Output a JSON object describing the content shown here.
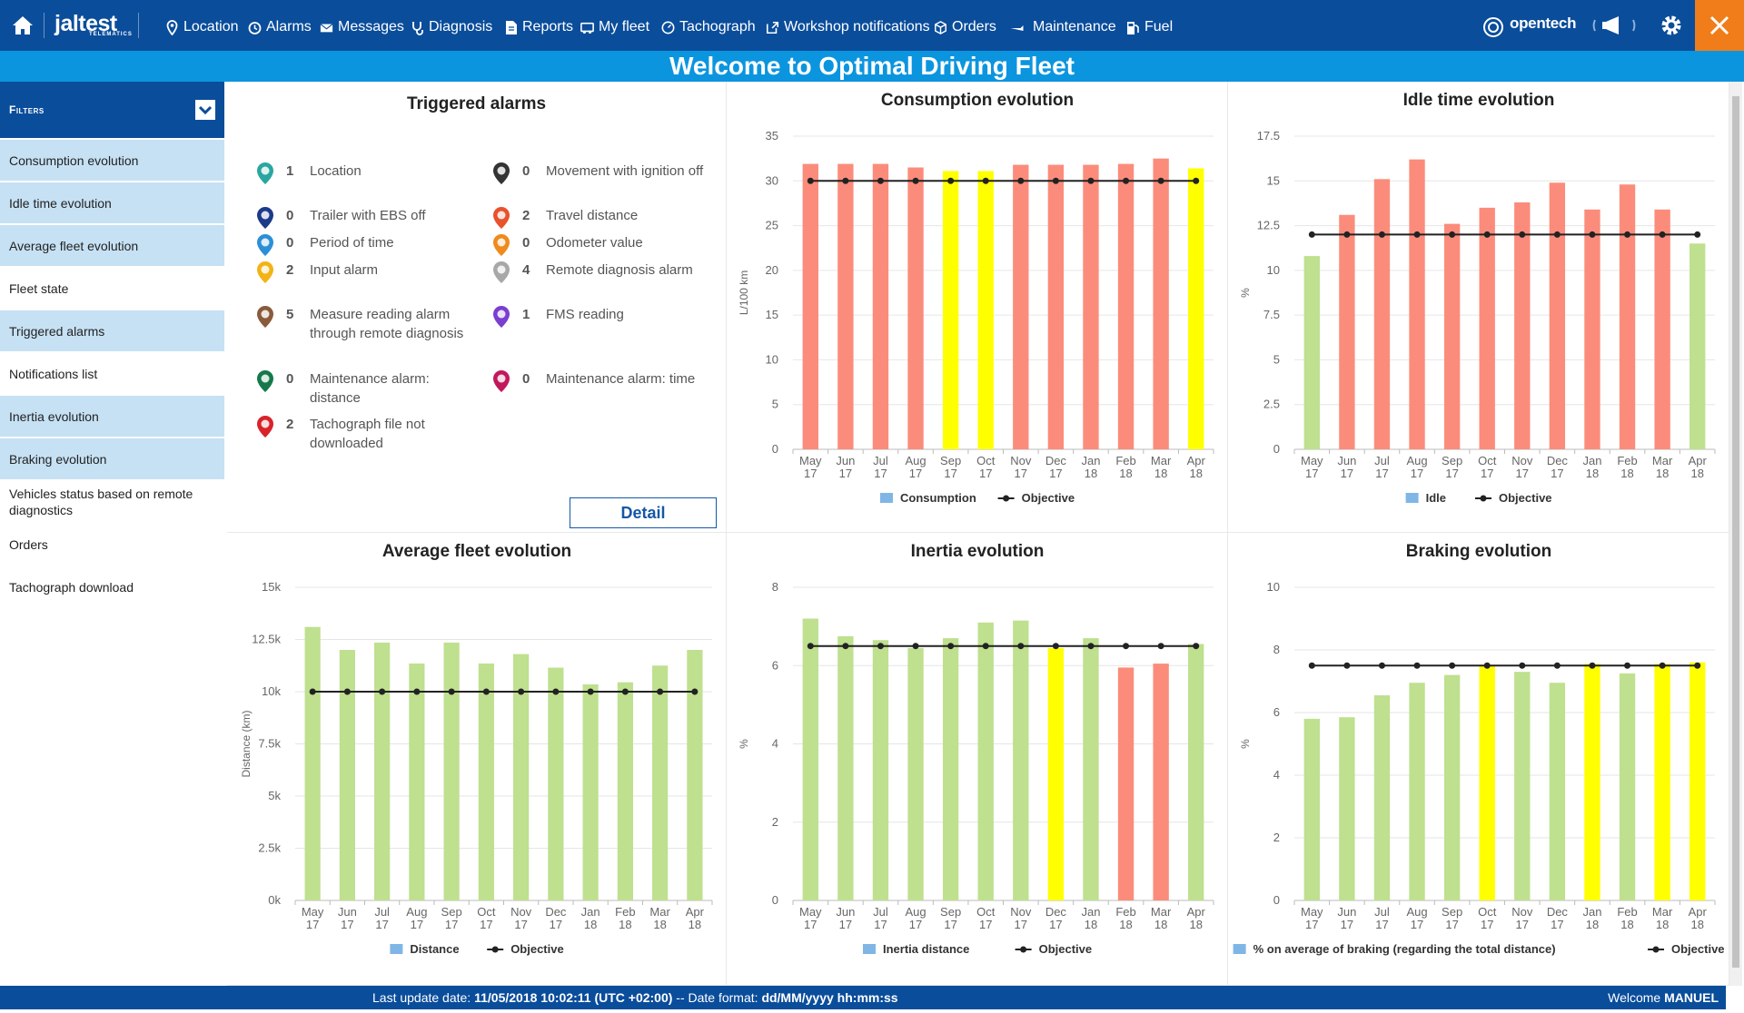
{
  "topbar": {
    "brand": "jaltest",
    "brand_sub": "TELEMATICS",
    "nav": [
      "Location",
      "Alarms",
      "Messages",
      "Diagnosis",
      "Reports",
      "My fleet",
      "Tachograph",
      "Workshop notifications",
      "Orders",
      "Maintenance",
      "Fuel"
    ],
    "right_brand": "opentech"
  },
  "welcome": "Welcome to Optimal Driving Fleet",
  "sidebar": {
    "header": "Filters",
    "items": [
      {
        "label": "Consumption evolution",
        "active": true
      },
      {
        "label": "Idle time evolution",
        "active": true
      },
      {
        "label": "Average fleet evolution",
        "active": true
      },
      {
        "label": "Fleet state",
        "active": false
      },
      {
        "label": "Triggered alarms",
        "active": true
      },
      {
        "label": "Notifications list",
        "active": false
      },
      {
        "label": "Inertia evolution",
        "active": true
      },
      {
        "label": "Braking evolution",
        "active": true
      },
      {
        "label": "Vehicles status based on remote diagnostics",
        "active": false
      },
      {
        "label": "Orders",
        "active": false
      },
      {
        "label": "Tachograph download",
        "active": false
      }
    ]
  },
  "alarms": {
    "title": "Triggered alarms",
    "detail_label": "Detail",
    "left": [
      {
        "count": "1",
        "label": "Location",
        "color": "#2aa6a0"
      },
      {
        "count": "0",
        "label": "Trailer with EBS off",
        "color": "#1c3a8a"
      },
      {
        "count": "0",
        "label": "Period of time",
        "color": "#2c8fd6"
      },
      {
        "count": "2",
        "label": "Input alarm",
        "color": "#f3b315"
      },
      {
        "count": "5",
        "label": "Measure reading alarm through remote diagnosis",
        "color": "#8a5a3c"
      },
      {
        "count": "0",
        "label": "Maintenance alarm: distance",
        "color": "#15784a"
      },
      {
        "count": "2",
        "label": "Tachograph file not downloaded",
        "color": "#d8232a"
      }
    ],
    "right": [
      {
        "count": "0",
        "label": "Movement with ignition off",
        "color": "#333333"
      },
      {
        "count": "2",
        "label": "Travel distance",
        "color": "#e8522c"
      },
      {
        "count": "0",
        "label": "Odometer value",
        "color": "#f08a1c"
      },
      {
        "count": "4",
        "label": "Remote diagnosis alarm",
        "color": "#a8a8a8"
      },
      {
        "count": "1",
        "label": "FMS reading",
        "color": "#7a3fd0"
      },
      {
        "count": "0",
        "label": "Maintenance alarm: time",
        "color": "#c2185b"
      }
    ]
  },
  "status": {
    "prefix": "Last update date: ",
    "date": "11/05/2018 10:02:11 (UTC +02:00)",
    "mid": " -- Date format: ",
    "format": "dd/MM/yyyy hh:mm:ss",
    "welcome_prefix": "Welcome ",
    "user": "MANUEL"
  },
  "colors": {
    "red": "#fb8c7b",
    "yellow": "#ffff00",
    "green": "#bfe08f",
    "legend": "#7fb6e6"
  },
  "chart_data": [
    {
      "id": "consumption",
      "type": "bar",
      "title": "Consumption evolution",
      "ylabel": "L/100 km",
      "ylim": [
        0,
        35
      ],
      "yticks": [
        0,
        5,
        10,
        15,
        20,
        25,
        30,
        35
      ],
      "categories": [
        "May 17",
        "Jun 17",
        "Jul 17",
        "Aug 17",
        "Sep 17",
        "Oct 17",
        "Nov 17",
        "Dec 17",
        "Jan 18",
        "Feb 18",
        "Mar 18",
        "Apr 18"
      ],
      "series": [
        {
          "name": "Consumption",
          "values": [
            31.9,
            31.9,
            31.9,
            31.5,
            31.1,
            31.1,
            31.8,
            31.8,
            31.8,
            31.9,
            32.5,
            31.4
          ],
          "bar_colors": [
            "red",
            "red",
            "red",
            "red",
            "yellow",
            "yellow",
            "red",
            "red",
            "red",
            "red",
            "red",
            "yellow"
          ]
        },
        {
          "name": "Objective",
          "values": [
            30,
            30,
            30,
            30,
            30,
            30,
            30,
            30,
            30,
            30,
            30,
            30
          ]
        }
      ]
    },
    {
      "id": "idle",
      "type": "bar",
      "title": "Idle time evolution",
      "ylabel": "%",
      "ylim": [
        0,
        17.5
      ],
      "yticks": [
        0,
        2.5,
        5,
        7.5,
        10,
        12.5,
        15,
        17.5
      ],
      "categories": [
        "May 17",
        "Jun 17",
        "Jul 17",
        "Aug 17",
        "Sep 17",
        "Oct 17",
        "Nov 17",
        "Dec 17",
        "Jan 18",
        "Feb 18",
        "Mar 18",
        "Apr 18"
      ],
      "series": [
        {
          "name": "Idle",
          "values": [
            10.8,
            13.1,
            15.1,
            16.2,
            12.6,
            13.5,
            13.8,
            14.9,
            13.4,
            14.8,
            13.4,
            11.5
          ],
          "bar_colors": [
            "green",
            "red",
            "red",
            "red",
            "red",
            "red",
            "red",
            "red",
            "red",
            "red",
            "red",
            "green"
          ]
        },
        {
          "name": "Objective",
          "values": [
            12,
            12,
            12,
            12,
            12,
            12,
            12,
            12,
            12,
            12,
            12,
            12
          ]
        }
      ]
    },
    {
      "id": "fleet",
      "type": "bar",
      "title": "Average fleet evolution",
      "ylabel": "Distance (km)",
      "ylim": [
        0,
        15000
      ],
      "yticks": [
        0,
        2500,
        5000,
        7500,
        10000,
        12500,
        15000
      ],
      "ytick_labels": [
        "0k",
        "2.5k",
        "5k",
        "7.5k",
        "10k",
        "12.5k",
        "15k"
      ],
      "categories": [
        "May 17",
        "Jun 17",
        "Jul 17",
        "Aug 17",
        "Sep 17",
        "Oct 17",
        "Nov 17",
        "Dec 17",
        "Jan 18",
        "Feb 18",
        "Mar 18",
        "Apr 18"
      ],
      "series": [
        {
          "name": "Distance",
          "values": [
            13100,
            12000,
            12350,
            11350,
            12350,
            11350,
            11800,
            11150,
            10350,
            10450,
            11250,
            12000
          ],
          "bar_colors": [
            "green",
            "green",
            "green",
            "green",
            "green",
            "green",
            "green",
            "green",
            "green",
            "green",
            "green",
            "green"
          ]
        },
        {
          "name": "Objective",
          "values": [
            10000,
            10000,
            10000,
            10000,
            10000,
            10000,
            10000,
            10000,
            10000,
            10000,
            10000,
            10000
          ]
        }
      ]
    },
    {
      "id": "inertia",
      "type": "bar",
      "title": "Inertia evolution",
      "ylabel": "%",
      "ylim": [
        0,
        8
      ],
      "yticks": [
        0,
        2,
        4,
        6,
        8
      ],
      "categories": [
        "May 17",
        "Jun 17",
        "Jul 17",
        "Aug 17",
        "Sep 17",
        "Oct 17",
        "Nov 17",
        "Dec 17",
        "Jan 18",
        "Feb 18",
        "Mar 18",
        "Apr 18"
      ],
      "series": [
        {
          "name": "Inertia distance",
          "values": [
            7.2,
            6.75,
            6.65,
            6.45,
            6.7,
            7.1,
            7.15,
            6.45,
            6.7,
            5.95,
            6.05,
            6.55
          ],
          "bar_colors": [
            "green",
            "green",
            "green",
            "green",
            "green",
            "green",
            "green",
            "yellow",
            "green",
            "red",
            "red",
            "green"
          ]
        },
        {
          "name": "Objective",
          "values": [
            6.5,
            6.5,
            6.5,
            6.5,
            6.5,
            6.5,
            6.5,
            6.5,
            6.5,
            6.5,
            6.5,
            6.5
          ]
        }
      ]
    },
    {
      "id": "braking",
      "type": "bar",
      "title": "Braking evolution",
      "ylabel": "%",
      "ylim": [
        0,
        10
      ],
      "yticks": [
        0,
        2,
        4,
        6,
        8,
        10
      ],
      "categories": [
        "May 17",
        "Jun 17",
        "Jul 17",
        "Aug 17",
        "Sep 17",
        "Oct 17",
        "Nov 17",
        "Dec 17",
        "Jan 18",
        "Feb 18",
        "Mar 18",
        "Apr 18"
      ],
      "series": [
        {
          "name": "% on average of braking (regarding the total distance)",
          "values": [
            5.8,
            5.85,
            6.55,
            6.95,
            7.2,
            7.5,
            7.3,
            6.95,
            7.55,
            7.25,
            7.55,
            7.6
          ],
          "bar_colors": [
            "green",
            "green",
            "green",
            "green",
            "green",
            "yellow",
            "green",
            "green",
            "yellow",
            "green",
            "yellow",
            "yellow"
          ]
        },
        {
          "name": "Objective",
          "values": [
            7.5,
            7.5,
            7.5,
            7.5,
            7.5,
            7.5,
            7.5,
            7.5,
            7.5,
            7.5,
            7.5,
            7.5
          ]
        }
      ]
    }
  ]
}
